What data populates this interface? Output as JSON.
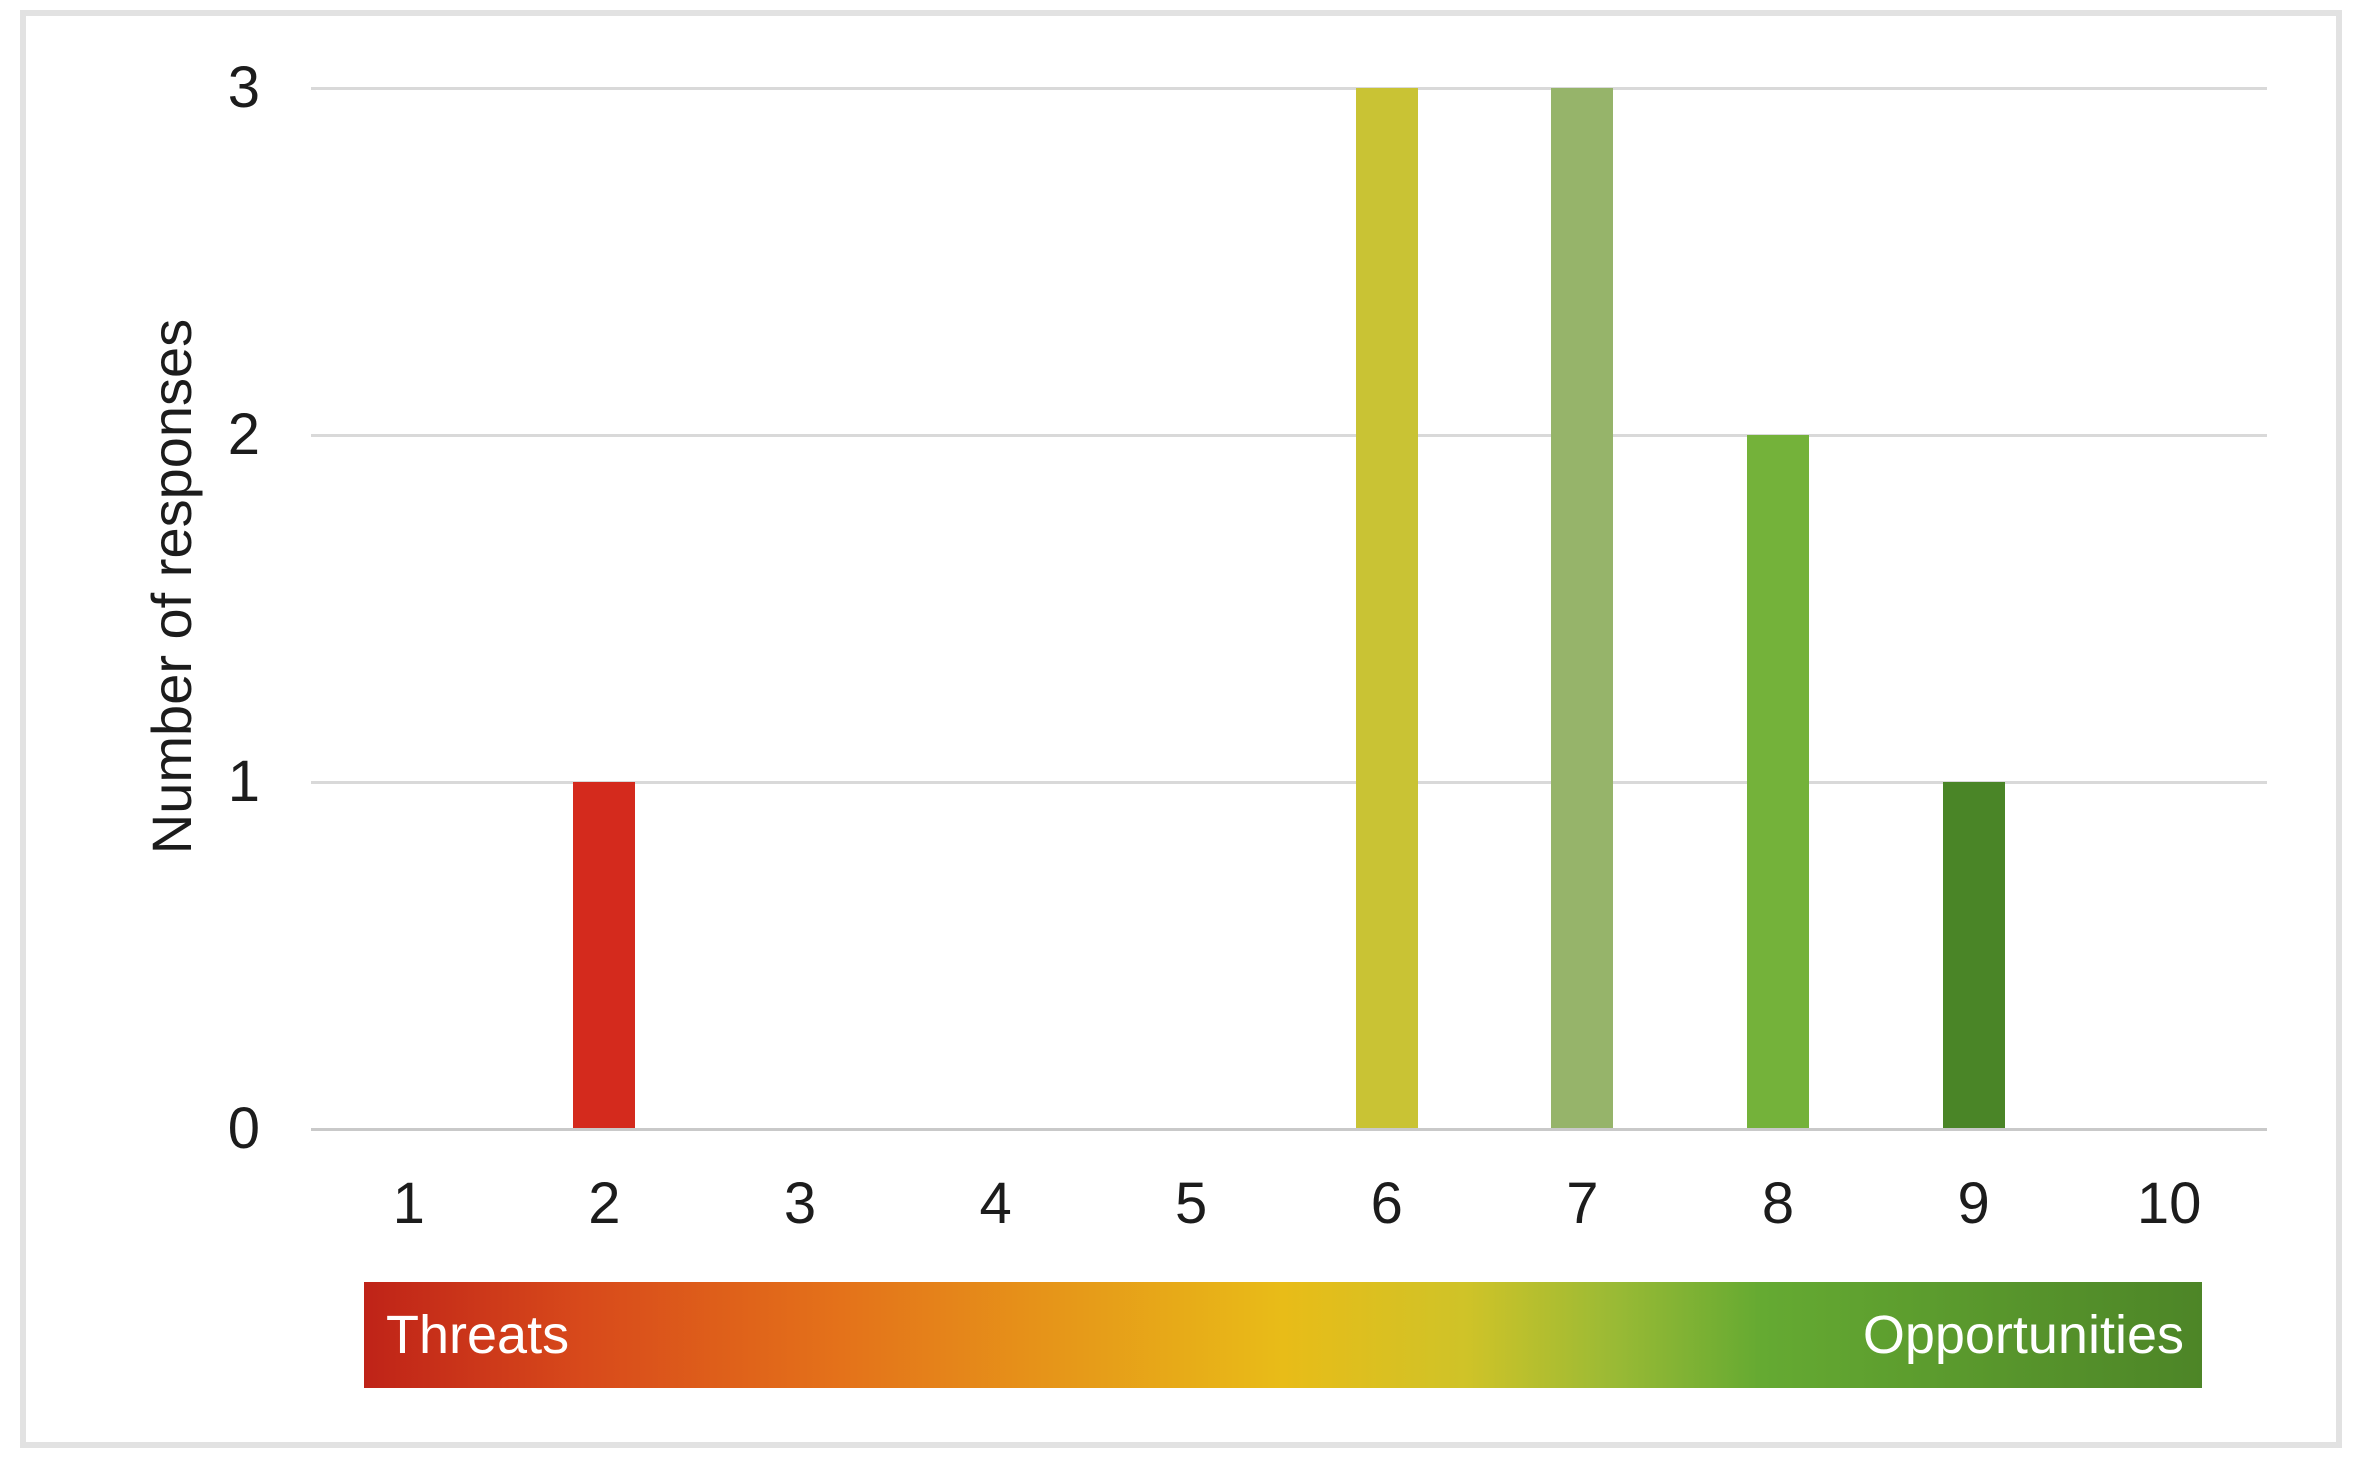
{
  "figure": {
    "border_color": "#e2e2e2",
    "gridline_color": "#d9d9d9",
    "axisline_color": "#c9c9c9",
    "text_color": "#1c1c1c"
  },
  "chart_data": {
    "type": "bar",
    "title": "",
    "xlabel": "",
    "ylabel": "Number of responses",
    "categories": [
      "1",
      "2",
      "3",
      "4",
      "5",
      "6",
      "7",
      "8",
      "9",
      "10"
    ],
    "values": [
      0,
      1,
      0,
      0,
      0,
      3,
      3,
      2,
      1,
      0
    ],
    "bar_colors": [
      "#d42a1d",
      "#d42a1d",
      "#e4721a",
      "#e8a81a",
      "#e8bc18",
      "#c9c334",
      "#96b46a",
      "#74b23a",
      "#4a8527",
      "#4d8527"
    ],
    "ylim": [
      0,
      3
    ],
    "yticks": [
      "0",
      "1",
      "2",
      "3"
    ],
    "grid": true,
    "legend": "none"
  },
  "scale_bar": {
    "left_label": "Threats",
    "right_label": "Opportunities",
    "label_color": "#ffffff",
    "gradient_stops": [
      {
        "pos": 0,
        "color": "#bf2318"
      },
      {
        "pos": 12,
        "color": "#d84a1b"
      },
      {
        "pos": 26,
        "color": "#e4721a"
      },
      {
        "pos": 50,
        "color": "#e8bc18"
      },
      {
        "pos": 60,
        "color": "#cfc328"
      },
      {
        "pos": 68,
        "color": "#9aba35"
      },
      {
        "pos": 76,
        "color": "#65aa32"
      },
      {
        "pos": 100,
        "color": "#4d8527"
      }
    ]
  }
}
